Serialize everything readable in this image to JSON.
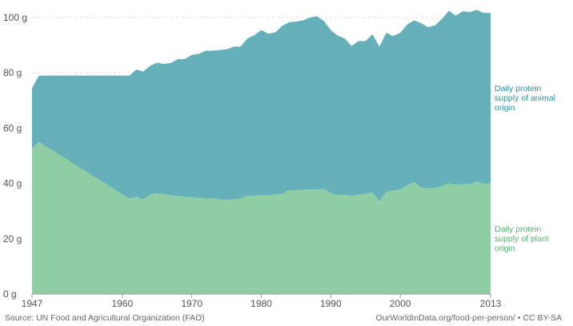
{
  "chart_data": {
    "type": "area",
    "stacked": true,
    "y_unit": "g",
    "ylim": [
      0,
      100
    ],
    "y_ticks": [
      0,
      20,
      40,
      60,
      80,
      100
    ],
    "y_tick_labels": [
      "0 g",
      "20 g",
      "40 g",
      "60 g",
      "80 g",
      "100 g"
    ],
    "xlim": [
      1947,
      2013
    ],
    "x_ticks": [
      1947,
      1960,
      1970,
      1980,
      1990,
      2000,
      2013
    ],
    "x_tick_labels": [
      "1947",
      "1960",
      "1970",
      "1980",
      "1990",
      "2000",
      "2013"
    ],
    "grid": true,
    "x": [
      1947,
      1948,
      1961,
      1962,
      1963,
      1964,
      1965,
      1966,
      1967,
      1968,
      1969,
      1970,
      1971,
      1972,
      1973,
      1974,
      1975,
      1976,
      1977,
      1978,
      1979,
      1980,
      1981,
      1982,
      1983,
      1984,
      1985,
      1986,
      1987,
      1988,
      1989,
      1990,
      1991,
      1992,
      1993,
      1994,
      1995,
      1996,
      1997,
      1998,
      1999,
      2000,
      2001,
      2002,
      2003,
      2004,
      2005,
      2006,
      2007,
      2008,
      2009,
      2010,
      2011,
      2012,
      2013
    ],
    "series": [
      {
        "name": "Daily protein supply of plant origin",
        "label_lines": [
          "Daily protein",
          "supply of plant",
          "origin"
        ],
        "color": "#8fcea4",
        "values": [
          52.5,
          55,
          34.5,
          35.2,
          34.2,
          36,
          36.5,
          36.2,
          35.6,
          35.5,
          35.2,
          35,
          34.8,
          34.5,
          34.7,
          34.2,
          34,
          34.4,
          34.5,
          35.5,
          35.6,
          35.7,
          35.7,
          36,
          36.2,
          37.5,
          37.6,
          37.7,
          37.8,
          37.8,
          38,
          36.5,
          35.8,
          36,
          35.5,
          36,
          36.2,
          36.8,
          33.5,
          37,
          37.5,
          37.8,
          39.3,
          40.5,
          38.5,
          38.2,
          38.4,
          39,
          40,
          39.5,
          39.8,
          39.7,
          40.7,
          39.9,
          40
        ]
      },
      {
        "name": "Daily protein supply of animal origin",
        "label_lines": [
          "Daily protein",
          "supply of animal",
          "origin"
        ],
        "color": "#66b1b9",
        "values": [
          22,
          24,
          44.5,
          46,
          46.3,
          46.5,
          47.2,
          47,
          48,
          49.5,
          49.8,
          51.5,
          52.1,
          53.5,
          53.3,
          54.1,
          54.5,
          55.1,
          55,
          57,
          58,
          59.8,
          58.5,
          58.6,
          60.8,
          60.8,
          61,
          61.3,
          62.2,
          62.7,
          60.8,
          59,
          57.7,
          56.5,
          54.2,
          55.5,
          55.3,
          57.2,
          56,
          57.5,
          55.8,
          56.7,
          58.2,
          58.5,
          59.5,
          58.3,
          58.8,
          60.5,
          62.5,
          61.2,
          62.5,
          62.3,
          62.1,
          61.8,
          61.7
        ]
      }
    ]
  },
  "footer": {
    "source": "Source: UN Food and Agricultural Organization (FAO)",
    "credit": "OurWorldInData.org/food-per-person/ • CC BY-SA"
  }
}
